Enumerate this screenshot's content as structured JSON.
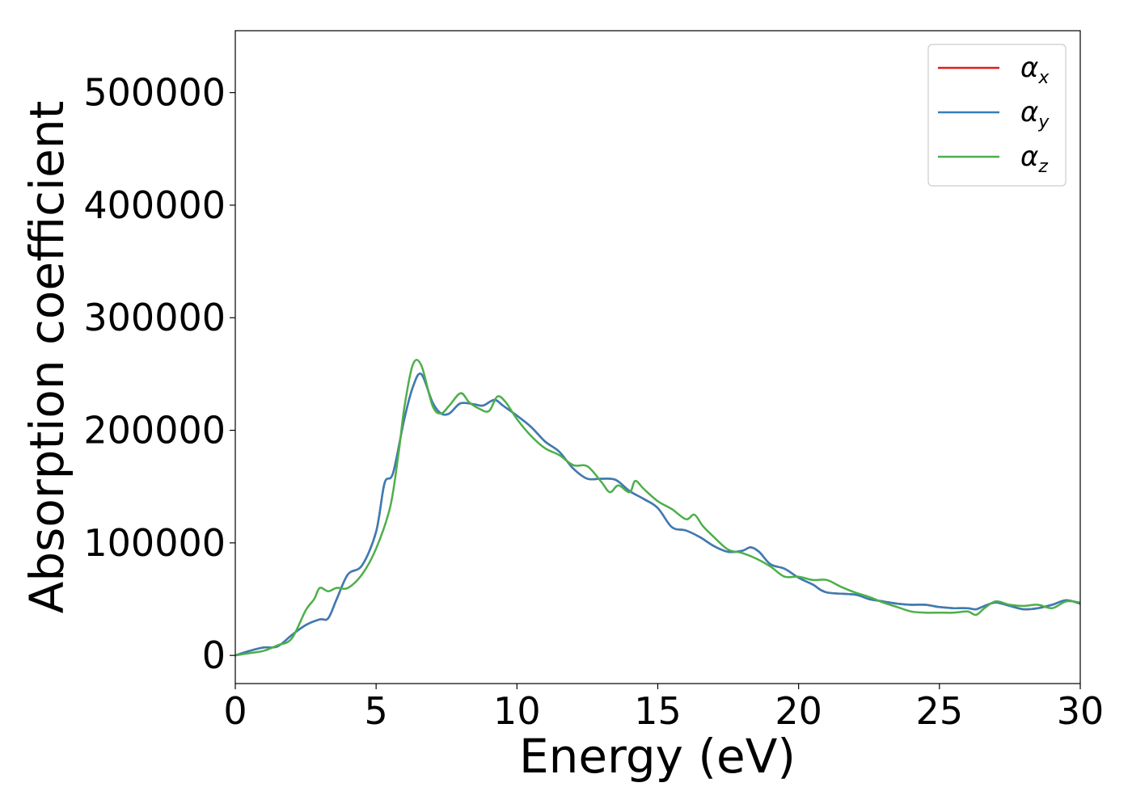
{
  "chart_data": {
    "type": "line",
    "title": "",
    "xlabel": "Energy (eV)",
    "ylabel": "Absorption coefficient",
    "xlim": [
      0,
      30
    ],
    "ylim": [
      -25000,
      555000
    ],
    "xticks": [
      0,
      5,
      10,
      15,
      20,
      25,
      30
    ],
    "xtick_labels": [
      "0",
      "5",
      "10",
      "15",
      "20",
      "25",
      "30"
    ],
    "yticks": [
      0,
      100000,
      200000,
      300000,
      400000,
      500000
    ],
    "ytick_labels": [
      "0",
      "100000",
      "200000",
      "300000",
      "400000",
      "500000"
    ],
    "grid": false,
    "legend_position": "top-right",
    "series": [
      {
        "name": "α",
        "subscript": "x",
        "color": "#e41a1c",
        "x": [
          0,
          0.5,
          1.0,
          1.5,
          2.0,
          2.5,
          3.0,
          3.3,
          3.6,
          4.0,
          4.5,
          5.0,
          5.3,
          5.6,
          6.0,
          6.3,
          6.6,
          7.0,
          7.3,
          7.6,
          8.0,
          8.5,
          8.8,
          9.2,
          9.5,
          10.0,
          10.5,
          11.0,
          11.5,
          12.0,
          12.5,
          13.0,
          13.5,
          14.0,
          14.5,
          15.0,
          15.5,
          16.0,
          16.5,
          17.0,
          17.5,
          18.0,
          18.3,
          18.6,
          19.0,
          19.5,
          20.0,
          20.5,
          21.0,
          22.0,
          22.5,
          23.0,
          23.5,
          24.0,
          24.5,
          25.0,
          25.5,
          26.0,
          26.3,
          26.6,
          27.0,
          27.5,
          28.0,
          28.5,
          29.0,
          29.5,
          30.0
        ],
        "y": [
          0,
          4000,
          7000,
          8000,
          18000,
          27000,
          32000,
          33000,
          50000,
          72000,
          80000,
          110000,
          153000,
          162000,
          210000,
          238000,
          250000,
          225000,
          215000,
          215000,
          224000,
          223000,
          222000,
          227000,
          222000,
          213000,
          203000,
          190000,
          181000,
          166000,
          157000,
          157000,
          156000,
          146000,
          139000,
          131000,
          114000,
          111000,
          105000,
          97000,
          92000,
          93000,
          96000,
          92000,
          81000,
          77000,
          69000,
          63000,
          56000,
          54000,
          50000,
          48000,
          46000,
          45000,
          45000,
          43000,
          42000,
          42000,
          41000,
          44000,
          47000,
          44000,
          41000,
          42000,
          45000,
          49000,
          46000
        ]
      },
      {
        "name": "α",
        "subscript": "y",
        "color": "#377eb8",
        "x": [
          0,
          0.5,
          1.0,
          1.5,
          2.0,
          2.5,
          3.0,
          3.3,
          3.6,
          4.0,
          4.5,
          5.0,
          5.3,
          5.6,
          6.0,
          6.3,
          6.6,
          7.0,
          7.3,
          7.6,
          8.0,
          8.5,
          8.8,
          9.2,
          9.5,
          10.0,
          10.5,
          11.0,
          11.5,
          12.0,
          12.5,
          13.0,
          13.5,
          14.0,
          14.5,
          15.0,
          15.5,
          16.0,
          16.5,
          17.0,
          17.5,
          18.0,
          18.3,
          18.6,
          19.0,
          19.5,
          20.0,
          20.5,
          21.0,
          22.0,
          22.5,
          23.0,
          23.5,
          24.0,
          24.5,
          25.0,
          25.5,
          26.0,
          26.3,
          26.6,
          27.0,
          27.5,
          28.0,
          28.5,
          29.0,
          29.5,
          30.0
        ],
        "y": [
          0,
          4000,
          7000,
          8000,
          18000,
          27000,
          32000,
          33000,
          50000,
          72000,
          80000,
          110000,
          153000,
          162000,
          210000,
          238000,
          250000,
          225000,
          215000,
          215000,
          224000,
          223000,
          222000,
          227000,
          222000,
          213000,
          203000,
          190000,
          181000,
          166000,
          157000,
          157000,
          156000,
          146000,
          139000,
          131000,
          114000,
          111000,
          105000,
          97000,
          92000,
          93000,
          96000,
          92000,
          81000,
          77000,
          69000,
          63000,
          56000,
          54000,
          50000,
          48000,
          46000,
          45000,
          45000,
          43000,
          42000,
          42000,
          41000,
          44000,
          47000,
          44000,
          41000,
          42000,
          45000,
          49000,
          46000
        ]
      },
      {
        "name": "α",
        "subscript": "z",
        "color": "#4daf4a",
        "x": [
          0,
          0.5,
          1.0,
          1.5,
          2.0,
          2.5,
          2.8,
          3.0,
          3.3,
          3.6,
          4.0,
          4.5,
          5.0,
          5.5,
          5.8,
          6.0,
          6.3,
          6.6,
          7.0,
          7.3,
          7.6,
          8.0,
          8.3,
          8.6,
          9.0,
          9.3,
          9.6,
          10.0,
          10.5,
          11.0,
          11.5,
          12.0,
          12.5,
          13.0,
          13.3,
          13.6,
          14.0,
          14.2,
          14.5,
          15.0,
          15.5,
          16.0,
          16.3,
          16.6,
          17.0,
          17.5,
          18.0,
          18.5,
          19.0,
          19.5,
          20.0,
          20.5,
          21.0,
          21.5,
          22.0,
          22.5,
          23.0,
          23.5,
          24.0,
          24.5,
          25.0,
          25.5,
          26.0,
          26.3,
          26.6,
          27.0,
          27.5,
          28.0,
          28.5,
          29.0,
          29.5,
          30.0
        ],
        "y": [
          0,
          2000,
          4000,
          9000,
          15000,
          40000,
          50000,
          60000,
          57000,
          60000,
          60000,
          72000,
          95000,
          132000,
          180000,
          220000,
          258000,
          258000,
          222000,
          215000,
          222000,
          233000,
          225000,
          220000,
          217000,
          230000,
          225000,
          210000,
          195000,
          184000,
          178000,
          169000,
          168000,
          154000,
          145000,
          151000,
          145000,
          155000,
          148000,
          137000,
          130000,
          121000,
          125000,
          115000,
          105000,
          94000,
          91000,
          86000,
          79000,
          70000,
          70000,
          67000,
          67000,
          61000,
          56000,
          52000,
          47000,
          43000,
          39000,
          38000,
          38000,
          38000,
          39000,
          36000,
          42000,
          48000,
          45000,
          44000,
          45000,
          42000,
          48000,
          47000
        ]
      }
    ]
  }
}
